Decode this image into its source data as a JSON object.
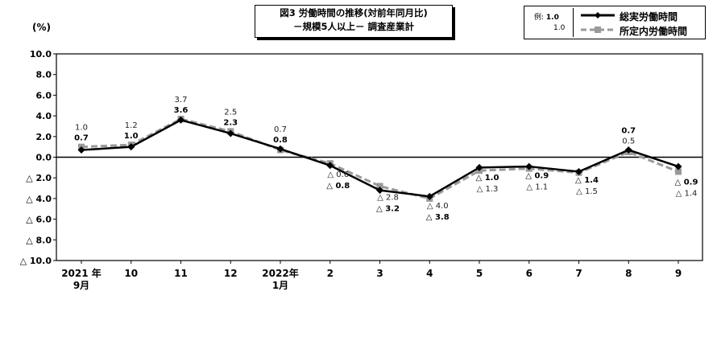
{
  "title": {
    "line1": "図3  労働時間の推移(対前年同月比)",
    "line2": "－規模5人以上－  調査産業計"
  },
  "unit_label": "(%)",
  "legend": {
    "example_prefix": "例:",
    "example_bold": "1.0",
    "example_plain": "1.0",
    "series1": "総実労働時間",
    "series2": "所定内労働時間"
  },
  "colors": {
    "series1": "#000000",
    "series2": "#9a9a9a"
  },
  "chart_data": {
    "type": "line",
    "title": "図3  労働時間の推移(対前年同月比) －規模5人以上－  調査産業計",
    "ylabel": "(%)",
    "ylim": [
      -10,
      10
    ],
    "grid": false,
    "legend_position": "top-right",
    "y_ticks": [
      "10.0",
      "8.0",
      "6.0",
      "4.0",
      "2.0",
      "0.0",
      "△ 2.0",
      "△ 4.0",
      "△ 6.0",
      "△ 8.0",
      "△ 10.0"
    ],
    "categories": [
      [
        "2021 年",
        "9月"
      ],
      [
        "10"
      ],
      [
        "11"
      ],
      [
        "12"
      ],
      [
        "2022年",
        "1月"
      ],
      [
        "2"
      ],
      [
        "3"
      ],
      [
        "4"
      ],
      [
        "5"
      ],
      [
        "6"
      ],
      [
        "7"
      ],
      [
        "8"
      ],
      [
        "9"
      ]
    ],
    "series": [
      {
        "name": "総実労働時間",
        "values": [
          0.7,
          1.0,
          3.6,
          2.3,
          0.8,
          -0.8,
          -3.2,
          -3.8,
          -1.0,
          -0.9,
          -1.4,
          0.7,
          -0.9
        ],
        "labels": [
          "0.7",
          "1.0",
          "3.6",
          "2.3",
          "0.8",
          "△ 0.8",
          "△ 3.2",
          "△ 3.8",
          "△ 1.0",
          "△ 0.9",
          "△ 1.4",
          "0.7",
          "△ 0.9"
        ]
      },
      {
        "name": "所定内労働時間",
        "values": [
          1.0,
          1.2,
          3.7,
          2.5,
          0.7,
          -0.6,
          -2.8,
          -4.0,
          -1.3,
          -1.1,
          -1.5,
          0.5,
          -1.4
        ],
        "labels": [
          "1.0",
          "1.2",
          "3.7",
          "2.5",
          "0.7",
          "△ 0.6",
          "△ 2.8",
          "△ 4.0",
          "△ 1.3",
          "△ 1.1",
          "△ 1.5",
          "0.5",
          "△ 1.4"
        ]
      }
    ]
  }
}
